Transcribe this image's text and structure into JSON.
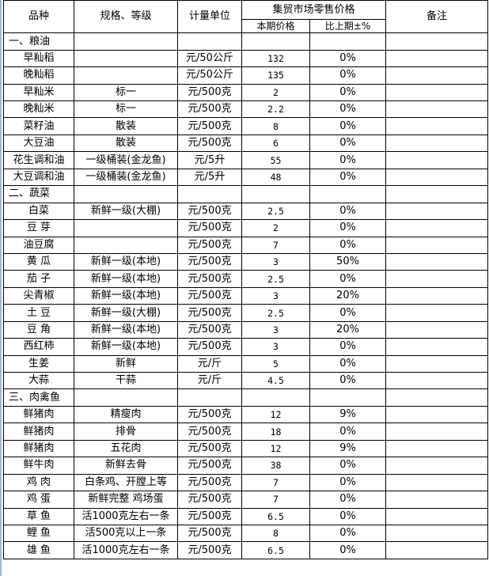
{
  "header": {
    "variety": "品种",
    "spec": "规格、等级",
    "unit": "计量单位",
    "market_price": "集贸市场零售价格",
    "current_price": "本期价格",
    "change": "比上期±%",
    "remarks": "备注"
  },
  "sections": [
    {
      "title": "一、粮油",
      "rows": [
        {
          "name": "早籼稻",
          "spec": "",
          "unit": "元/50公斤",
          "price": "132",
          "change": "0%"
        },
        {
          "name": "晚籼稻",
          "spec": "",
          "unit": "元/50公斤",
          "price": "135",
          "change": "0%"
        },
        {
          "name": "早籼米",
          "spec": "标一",
          "unit": "元/500克",
          "price": "2",
          "change": "0%"
        },
        {
          "name": "晚籼米",
          "spec": "标一",
          "unit": "元/500克",
          "price": "2.2",
          "change": "0%"
        },
        {
          "name": "菜籽油",
          "spec": "散装",
          "unit": "元/500克",
          "price": "8",
          "change": "0%"
        },
        {
          "name": "大豆油",
          "spec": "散装",
          "unit": "元/500克",
          "price": "6",
          "change": "0%"
        },
        {
          "name": "花生调和油",
          "spec": "一级桶装(金龙鱼)",
          "unit": "元/5升",
          "price": "55",
          "change": "0%"
        },
        {
          "name": "大豆调和油",
          "spec": "一级桶装(金龙鱼)",
          "unit": "元/5升",
          "price": "48",
          "change": "0%"
        }
      ]
    },
    {
      "title": "二、蔬菜",
      "rows": [
        {
          "name": "白菜",
          "spec": "新鲜一级(大棚)",
          "unit": "元/500克",
          "price": "2.5",
          "change": "0%"
        },
        {
          "name": "豆 芽",
          "spec": "",
          "unit": "元/500克",
          "price": "2",
          "change": "0%"
        },
        {
          "name": "油豆腐",
          "spec": "",
          "unit": "元/500克",
          "price": "7",
          "change": "0%"
        },
        {
          "name": "黄 瓜",
          "spec": "新鲜一级(本地)",
          "unit": "元/500克",
          "price": "3",
          "change": "50%"
        },
        {
          "name": "茄 子",
          "spec": "新鲜一级(本地)",
          "unit": "元/500克",
          "price": "2.5",
          "change": "0%"
        },
        {
          "name": "尖青椒",
          "spec": "新鲜一级(本地)",
          "unit": "元/500克",
          "price": "3",
          "change": "20%"
        },
        {
          "name": "土  豆",
          "spec": "新鲜一级(大棚)",
          "unit": "元/500克",
          "price": "2.5",
          "change": "0%"
        },
        {
          "name": "豆  角",
          "spec": "新鲜一级(本地)",
          "unit": "元/500克",
          "price": "3",
          "change": "20%"
        },
        {
          "name": "西红柿",
          "spec": "新鲜一级(本地)",
          "unit": "元/500克",
          "price": "3",
          "change": "0%"
        },
        {
          "name": "生姜",
          "spec": "新鲜",
          "unit": "元/斤",
          "price": "5",
          "change": "0%"
        },
        {
          "name": "大蒜",
          "spec": "干蒜",
          "unit": "元/斤",
          "price": "4.5",
          "change": "0%"
        }
      ]
    },
    {
      "title": "三、肉禽鱼",
      "rows": [
        {
          "name": "鲜猪肉",
          "spec": "精瘦肉",
          "unit": "元/500克",
          "price": "12",
          "change": "9%"
        },
        {
          "name": "鲜猪肉",
          "spec": "排骨",
          "unit": "元/500克",
          "price": "18",
          "change": "0%"
        },
        {
          "name": "鲜猪肉",
          "spec": "五花肉",
          "unit": "元/500克",
          "price": "12",
          "change": "9%"
        },
        {
          "name": "鲜牛肉",
          "spec": "新鲜去骨",
          "unit": "元/500克",
          "price": "38",
          "change": "0%"
        },
        {
          "name": "鸡  肉",
          "spec": "白条鸡、开膛上等",
          "unit": "元/500克",
          "price": "7",
          "change": "0%"
        },
        {
          "name": "鸡  蛋",
          "spec": "新鲜完整 鸡场蛋",
          "unit": "元/500克",
          "price": "7",
          "change": "0%"
        },
        {
          "name": "草  鱼",
          "spec": "活1000克左右一条",
          "unit": "元/500克",
          "price": "6.5",
          "change": "0%"
        },
        {
          "name": "鲤  鱼",
          "spec": "活500克以上一条",
          "unit": "元/500克",
          "price": "8",
          "change": "0%"
        },
        {
          "name": "雄  鱼",
          "spec": "活1000克左右一条",
          "unit": "元/500克",
          "price": "6.5",
          "change": "0%"
        }
      ]
    }
  ]
}
